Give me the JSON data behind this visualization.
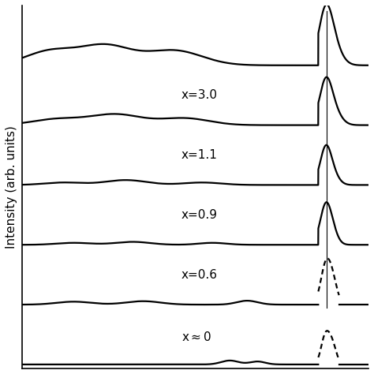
{
  "ylabel": "Intensity (arb. units)",
  "background_color": "#ffffff",
  "labels": [
    "x≈0",
    "x=0.6",
    "x=0.9",
    "x=1.1",
    "x=3.0"
  ],
  "vertical_line_x": 0.88,
  "label_fontsize": 11,
  "lw": 1.6
}
